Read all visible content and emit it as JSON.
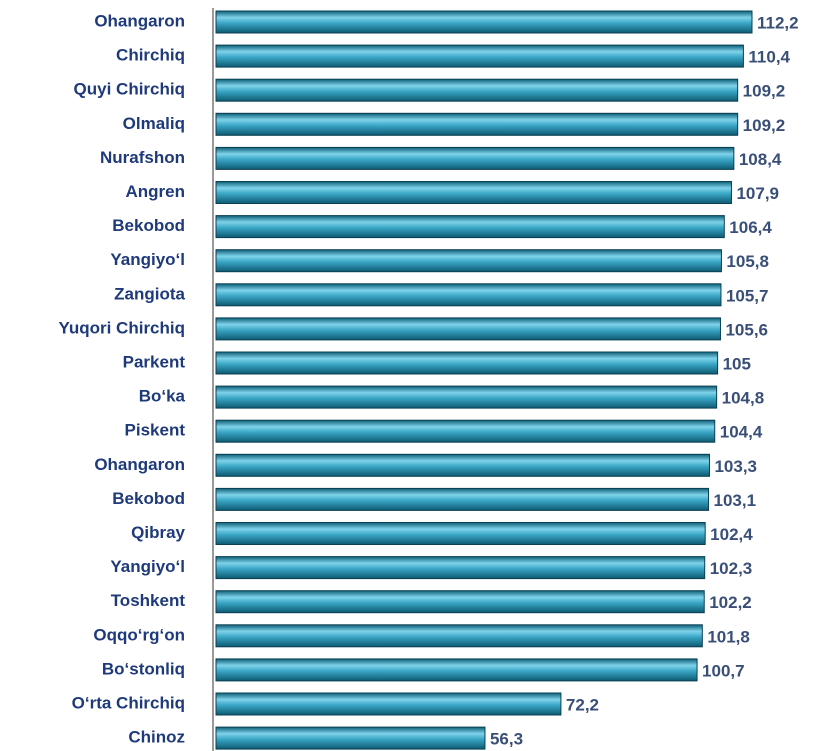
{
  "chart_data": {
    "type": "barh",
    "categories": [
      "Ohangaron",
      "Chirchiq",
      "Quyi Chirchiq",
      "Olmaliq",
      "Nurafshon",
      "Angren",
      "Bekobod",
      "Yangiyo‘l",
      "Zangiota",
      "Yuqori Chirchiq",
      "Parkent",
      "Bo‘ka",
      "Piskent",
      "Ohangaron",
      "Bekobod",
      "Qibray",
      "Yangiyo‘l",
      "Toshkent",
      "Oqqo‘rg‘on",
      "Bo‘stonliq",
      "O‘rta Chirchiq",
      "Chinoz"
    ],
    "values": [
      112.2,
      110.4,
      109.2,
      109.2,
      108.4,
      107.9,
      106.4,
      105.8,
      105.7,
      105.6,
      105,
      104.8,
      104.4,
      103.3,
      103.1,
      102.4,
      102.3,
      102.2,
      101.8,
      100.7,
      72.2,
      56.3
    ],
    "value_labels": [
      "112,2",
      "110,4",
      "109,2",
      "109,2",
      "108,4",
      "107,9",
      "106,4",
      "105,8",
      "105,7",
      "105,6",
      "105",
      "104,8",
      "104,4",
      "103,3",
      "103,1",
      "102,4",
      "102,3",
      "102,2",
      "101,8",
      "100,7",
      "72,2",
      "56,3"
    ],
    "color": "#3aa6c6"
  }
}
